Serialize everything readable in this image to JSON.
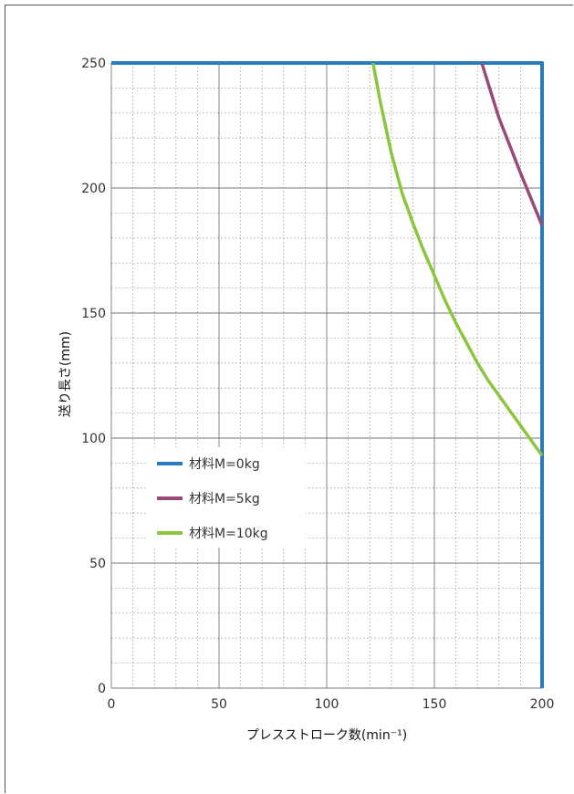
{
  "chart_data": {
    "type": "line",
    "xlabel": "プレスストローク数(min⁻¹)",
    "ylabel": "送り長さ(mm)",
    "xlim": [
      0,
      200
    ],
    "ylim": [
      0,
      250
    ],
    "x_ticks": [
      "0",
      "50",
      "100",
      "150",
      "200"
    ],
    "y_ticks": [
      "0",
      "50",
      "100",
      "150",
      "200",
      "250"
    ],
    "grid": true,
    "legend_position": "middle-left",
    "series": [
      {
        "name": "材料M=0kg",
        "color": "#2b7bbf",
        "x": [
          0,
          200,
          200
        ],
        "y": [
          250,
          250,
          0
        ]
      },
      {
        "name": "材料M=5kg",
        "color": "#9b4a78",
        "x": [
          172,
          180,
          190,
          200
        ],
        "y": [
          250,
          228,
          206,
          185
        ]
      },
      {
        "name": "材料M=10kg",
        "color": "#8cc63f",
        "x": [
          121.5,
          125,
          130,
          135,
          140,
          145,
          150,
          155,
          160,
          165,
          170,
          175,
          180,
          185,
          190,
          195,
          200
        ],
        "y": [
          250,
          234,
          214,
          198,
          186,
          175,
          165,
          155,
          146,
          138,
          130,
          123,
          117,
          111,
          105,
          99,
          93
        ]
      }
    ]
  }
}
